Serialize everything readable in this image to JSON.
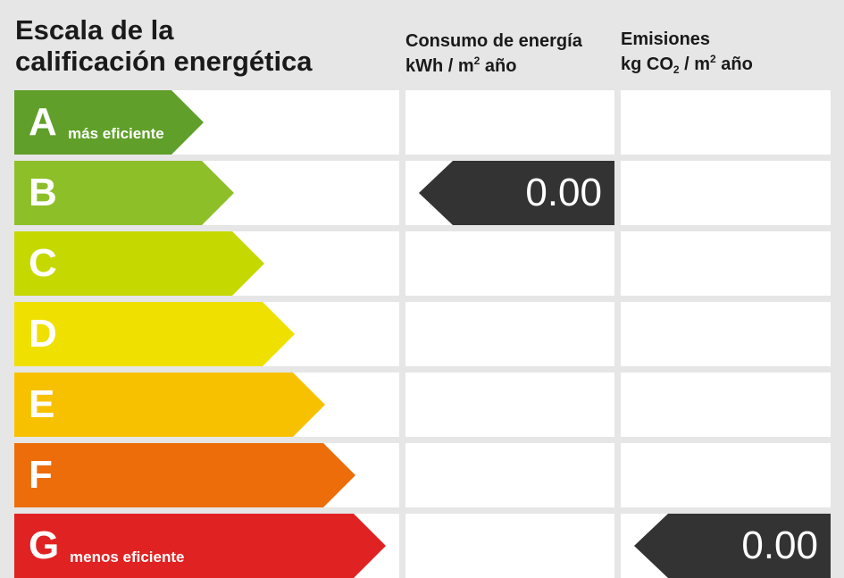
{
  "title_line1": "Escala de la",
  "title_line2": "calificación energética",
  "consumo_header": {
    "line1": "Consumo de energía",
    "unit_pre": "kWh / m",
    "unit_sup": "2",
    "unit_post": " año"
  },
  "emisiones_header": {
    "line1": "Emisiones",
    "unit_pre": "kg CO",
    "unit_sub": "2",
    "unit_mid": " / m",
    "unit_sup": "2",
    "unit_post": " año"
  },
  "chart_data": {
    "type": "table",
    "ratings": [
      {
        "letter": "A",
        "note": "más eficiente",
        "color": "#5f9f2a"
      },
      {
        "letter": "B",
        "note": "",
        "color": "#8dbf28"
      },
      {
        "letter": "C",
        "note": "",
        "color": "#c5d800"
      },
      {
        "letter": "D",
        "note": "",
        "color": "#efe000"
      },
      {
        "letter": "E",
        "note": "",
        "color": "#f8c100"
      },
      {
        "letter": "F",
        "note": "",
        "color": "#ec6d0a"
      },
      {
        "letter": "G",
        "note": "menos eficiente",
        "color": "#e02222"
      }
    ],
    "consumo": {
      "rating": "B",
      "value": "0.00"
    },
    "emisiones": {
      "rating": "G",
      "value": "0.00"
    }
  }
}
